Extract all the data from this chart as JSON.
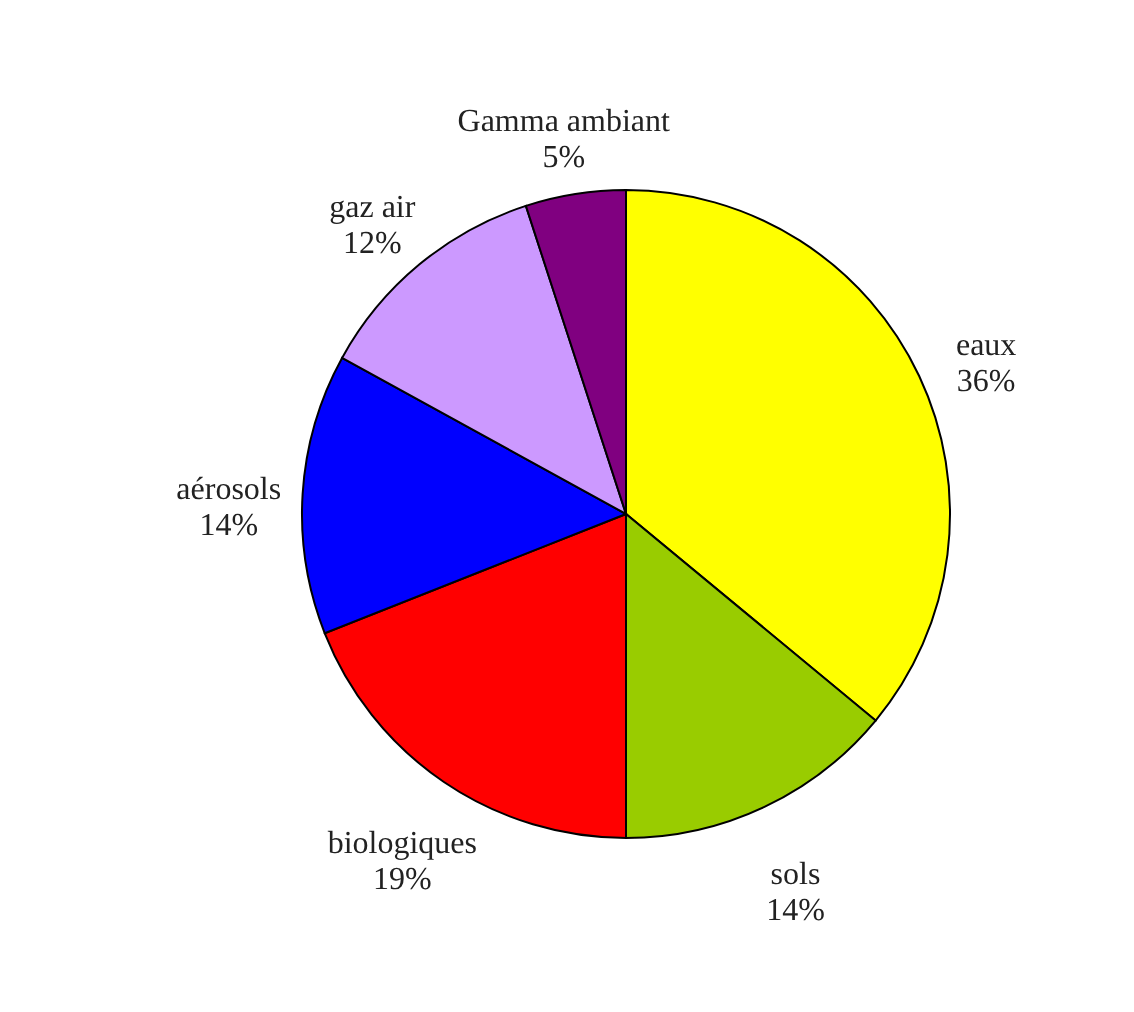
{
  "chart_data": {
    "type": "pie",
    "categories": [
      "eaux",
      "sols",
      "biologiques",
      "aérosols",
      "gaz air",
      "Gamma ambiant"
    ],
    "values": [
      36,
      14,
      19,
      14,
      12,
      5
    ],
    "value_labels": [
      "36%",
      "14%",
      "19%",
      "14%",
      "12%",
      "5%"
    ],
    "colors": [
      "#ffff00",
      "#99cc00",
      "#ff0000",
      "#0000ff",
      "#cc99ff",
      "#800080"
    ]
  }
}
